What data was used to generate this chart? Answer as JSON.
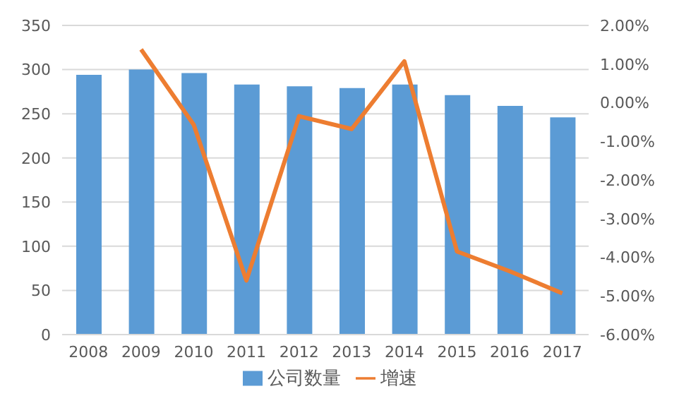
{
  "chart_data": {
    "type": "bar",
    "categories": [
      "2008",
      "2009",
      "2010",
      "2011",
      "2012",
      "2013",
      "2014",
      "2015",
      "2016",
      "2017"
    ],
    "series": [
      {
        "name": "公司数量",
        "color": "#5b9bd5",
        "values": [
          294,
          300,
          296,
          283,
          281,
          279,
          283,
          271,
          259,
          246
        ]
      },
      {
        "name": "增速",
        "type": "line",
        "axis": "y2",
        "color": "#ed7d31",
        "values": [
          null,
          1.38,
          -0.57,
          -4.6,
          -0.35,
          -0.68,
          1.07,
          -3.85,
          -4.36,
          -4.93
        ]
      }
    ],
    "ylim": [
      0,
      350
    ],
    "yticks": [
      0,
      50,
      100,
      150,
      200,
      250,
      300,
      350
    ],
    "y2lim": [
      -6,
      2
    ],
    "y2ticks": [
      {
        "value": -6,
        "label": "-6.00%"
      },
      {
        "value": -5,
        "label": "-5.00%"
      },
      {
        "value": -4,
        "label": "-4.00%"
      },
      {
        "value": -3,
        "label": "-3.00%"
      },
      {
        "value": -2,
        "label": "-2.00%"
      },
      {
        "value": -1,
        "label": "-1.00%"
      },
      {
        "value": 0,
        "label": "0.00%"
      },
      {
        "value": 1,
        "label": "1.00%"
      },
      {
        "value": 2,
        "label": "2.00%"
      }
    ],
    "grid": "y",
    "legend": "bottom",
    "marker": "none"
  }
}
